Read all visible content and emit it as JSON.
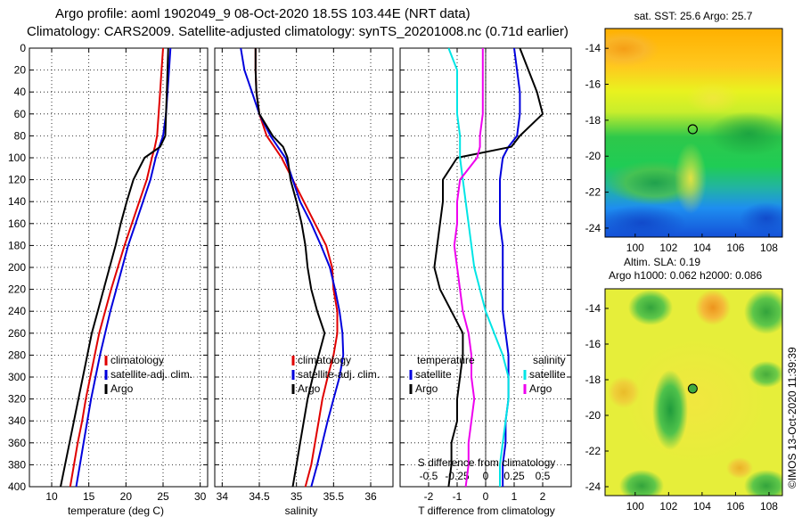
{
  "header": {
    "title_line1": "Argo profile: aoml 1902049_9 08-Oct-2020 18.5S 103.44E (NRT data)",
    "title_line2": "Climatology: CARS2009. Satellite-adjusted climatology: synTS_20201008.nc (0.71d earlier)"
  },
  "colors": {
    "climatology": "#e00000",
    "satellite": "#0000dd",
    "argo": "#000000",
    "salinity_diff": "#ee00ee",
    "salinity_satellite_diff": "#00e5e5",
    "grid": "#000000"
  },
  "chart_data": [
    {
      "id": "temperature",
      "type": "line",
      "xlabel": "temperature (deg C)",
      "ylabel": "",
      "xlim": [
        7,
        31
      ],
      "ylim": [
        400,
        0
      ],
      "xticks": [
        "10",
        "15",
        "20",
        "25",
        "30"
      ],
      "xtick_values": [
        10,
        15,
        20,
        25,
        30
      ],
      "yticks": [
        "0",
        "20",
        "40",
        "60",
        "80",
        "100",
        "120",
        "140",
        "160",
        "180",
        "200",
        "220",
        "240",
        "260",
        "280",
        "300",
        "320",
        "340",
        "360",
        "380",
        "400"
      ],
      "ytick_values": [
        0,
        20,
        40,
        60,
        80,
        100,
        120,
        140,
        160,
        180,
        200,
        220,
        240,
        260,
        280,
        300,
        320,
        340,
        360,
        380,
        400
      ],
      "legend": [
        "climatology",
        "satellite-adj. clim.",
        "Argo"
      ],
      "series": [
        {
          "name": "climatology",
          "color": "#e00000",
          "x": [
            25.0,
            24.8,
            24.6,
            24.4,
            24.2,
            23.9,
            23.5,
            22.8,
            21.8,
            20.8,
            19.8,
            18.9,
            18.0,
            17.2,
            16.4,
            15.8,
            15.2,
            14.6,
            14.1,
            13.5,
            13.0,
            12.5
          ],
          "y": [
            0,
            20,
            40,
            60,
            80,
            90,
            100,
            120,
            140,
            160,
            180,
            200,
            220,
            240,
            260,
            280,
            300,
            320,
            340,
            360,
            380,
            400
          ]
        },
        {
          "name": "satellite-adj. clim.",
          "color": "#0000dd",
          "x": [
            26.0,
            25.8,
            25.6,
            25.4,
            25.0,
            24.5,
            24.0,
            23.3,
            22.3,
            21.3,
            20.3,
            19.5,
            18.7,
            17.9,
            17.2,
            16.5,
            15.9,
            15.3,
            14.8,
            14.3,
            13.8,
            13.3
          ],
          "y": [
            0,
            20,
            40,
            60,
            80,
            90,
            100,
            120,
            140,
            160,
            180,
            200,
            220,
            240,
            260,
            280,
            300,
            320,
            340,
            360,
            380,
            400
          ]
        },
        {
          "name": "Argo",
          "color": "#000000",
          "x": [
            25.7,
            25.6,
            25.5,
            25.4,
            25.3,
            24.6,
            22.5,
            21.0,
            20.1,
            19.3,
            18.6,
            17.8,
            17.0,
            16.2,
            15.4,
            14.8,
            14.2,
            13.6,
            13.0,
            12.4,
            11.8,
            11.2
          ],
          "y": [
            0,
            20,
            40,
            60,
            80,
            90,
            100,
            120,
            140,
            160,
            180,
            200,
            220,
            240,
            260,
            280,
            300,
            320,
            340,
            360,
            380,
            400
          ]
        }
      ]
    },
    {
      "id": "salinity",
      "type": "line",
      "xlabel": "salinity",
      "ylabel": "",
      "xlim": [
        33.9,
        36.3
      ],
      "ylim": [
        400,
        0
      ],
      "xticks": [
        "34",
        "34.5",
        "35",
        "35.5",
        "36"
      ],
      "xtick_values": [
        34,
        34.5,
        35,
        35.5,
        36
      ],
      "legend": [
        "climatology",
        "satellite-adj. clim.",
        "Argo"
      ],
      "series": [
        {
          "name": "climatology",
          "color": "#e00000",
          "x": [
            34.45,
            34.45,
            34.46,
            34.5,
            34.6,
            34.7,
            34.8,
            34.95,
            35.1,
            35.25,
            35.4,
            35.48,
            35.5,
            35.55,
            35.55,
            35.5,
            35.42,
            35.35,
            35.3,
            35.25,
            35.2,
            35.12
          ],
          "y": [
            0,
            20,
            40,
            60,
            80,
            90,
            100,
            120,
            140,
            160,
            180,
            200,
            220,
            240,
            260,
            280,
            300,
            320,
            340,
            360,
            380,
            400
          ]
        },
        {
          "name": "satellite-adj. clim.",
          "color": "#0000dd",
          "x": [
            34.25,
            34.3,
            34.4,
            34.5,
            34.65,
            34.75,
            34.85,
            34.95,
            35.05,
            35.2,
            35.33,
            35.45,
            35.52,
            35.58,
            35.62,
            35.63,
            35.58,
            35.5,
            35.42,
            35.35,
            35.28,
            35.2
          ],
          "y": [
            0,
            20,
            40,
            60,
            80,
            90,
            100,
            120,
            140,
            160,
            180,
            200,
            220,
            240,
            260,
            280,
            300,
            320,
            340,
            360,
            380,
            400
          ]
        },
        {
          "name": "Argo",
          "color": "#000000",
          "x": [
            34.45,
            34.45,
            34.46,
            34.5,
            34.68,
            34.82,
            34.88,
            34.92,
            35.0,
            35.07,
            35.12,
            35.15,
            35.2,
            35.28,
            35.38,
            35.3,
            35.22,
            35.15,
            35.1,
            35.05,
            35.0,
            34.95
          ],
          "y": [
            0,
            20,
            40,
            60,
            80,
            90,
            100,
            120,
            140,
            160,
            180,
            200,
            220,
            240,
            260,
            280,
            300,
            320,
            340,
            360,
            380,
            400
          ]
        }
      ]
    },
    {
      "id": "difference",
      "type": "line",
      "xlabel": "T difference from climatology",
      "top_label": "S difference from climatology",
      "xlim": [
        -3,
        3
      ],
      "ylim": [
        400,
        0
      ],
      "xticks": [
        "-2",
        "-1",
        "0",
        "1",
        "2"
      ],
      "xtick_values": [
        -2,
        -1,
        0,
        1,
        2
      ],
      "s_xticks": [
        "-0.5",
        "-0.25",
        "0",
        "0.25",
        "0.5"
      ],
      "s_xtick_values": [
        -2,
        -1,
        0,
        1,
        2
      ],
      "legend_left_title": "temperature",
      "legend_right_title": "salinity",
      "legend_left": [
        "satellite",
        "Argo"
      ],
      "legend_right": [
        "satellite",
        "Argo"
      ],
      "series": [
        {
          "name": "temperature satellite",
          "color": "#0000dd",
          "x": [
            1.0,
            1.1,
            1.2,
            1.2,
            1.1,
            0.8,
            0.6,
            0.5,
            0.5,
            0.5,
            0.6,
            0.6,
            0.6,
            0.6,
            0.7,
            0.8,
            0.8,
            0.8,
            0.7,
            0.7,
            0.6,
            0.6
          ],
          "y": [
            0,
            20,
            40,
            60,
            80,
            90,
            100,
            120,
            140,
            160,
            180,
            200,
            220,
            240,
            260,
            280,
            300,
            320,
            340,
            360,
            380,
            400
          ]
        },
        {
          "name": "temperature Argo",
          "color": "#000000",
          "x": [
            1.2,
            1.5,
            1.8,
            2.0,
            1.2,
            0.9,
            -1.0,
            -1.5,
            -1.5,
            -1.6,
            -1.7,
            -1.8,
            -1.6,
            -1.2,
            -0.8,
            -0.8,
            -0.9,
            -1.0,
            -1.0,
            -1.2,
            -1.2,
            -1.3
          ],
          "y": [
            0,
            20,
            40,
            60,
            80,
            90,
            100,
            120,
            140,
            160,
            180,
            200,
            220,
            240,
            260,
            280,
            300,
            320,
            340,
            360,
            380,
            400
          ]
        },
        {
          "name": "salinity satellite",
          "color": "#00e5e5",
          "x": [
            -1.3,
            -1.0,
            -1.0,
            -1.0,
            -0.9,
            -0.9,
            -0.9,
            -0.8,
            -0.7,
            -0.6,
            -0.5,
            -0.4,
            -0.2,
            0.0,
            0.3,
            0.6,
            0.8,
            0.8,
            0.7,
            0.6,
            0.5,
            0.5
          ],
          "y": [
            0,
            20,
            40,
            60,
            80,
            90,
            100,
            120,
            140,
            160,
            180,
            200,
            220,
            240,
            260,
            280,
            300,
            320,
            340,
            360,
            380,
            400
          ]
        },
        {
          "name": "salinity Argo",
          "color": "#ee00ee",
          "x": [
            -0.1,
            -0.1,
            -0.1,
            -0.1,
            -0.2,
            -0.2,
            -0.3,
            -0.9,
            -1.0,
            -1.0,
            -1.1,
            -1.0,
            -0.9,
            -0.8,
            -0.6,
            -0.5,
            -0.5,
            -0.4,
            -0.5,
            -0.6,
            -0.6,
            -0.7
          ],
          "y": [
            0,
            20,
            40,
            60,
            80,
            90,
            100,
            120,
            140,
            160,
            180,
            200,
            220,
            240,
            260,
            280,
            300,
            320,
            340,
            360,
            380,
            400
          ]
        }
      ]
    }
  ],
  "maps": [
    {
      "id": "sst-map",
      "title": "sat. SST: 25.6 Argo: 25.7",
      "yticks": [
        "-14",
        "-16",
        "-18",
        "-20",
        "-22",
        "-24"
      ],
      "ytick_values": [
        -14,
        -16,
        -18,
        -20,
        -22,
        -24
      ],
      "xticks": [
        "100",
        "102",
        "104",
        "106",
        "108"
      ],
      "xtick_values": [
        100,
        102,
        104,
        106,
        108
      ],
      "lon_range": [
        98.2,
        108.8
      ],
      "lat_range": [
        -24.5,
        -12.9
      ],
      "argo_position": {
        "lon": 103.44,
        "lat": -18.5
      }
    },
    {
      "id": "sla-map",
      "title_line1": "Altim. SLA: 0.19",
      "title_line2": "Argo h1000: 0.062 h2000: 0.086",
      "yticks": [
        "-14",
        "-16",
        "-18",
        "-20",
        "-22",
        "-24"
      ],
      "ytick_values": [
        -14,
        -16,
        -18,
        -20,
        -22,
        -24
      ],
      "xticks": [
        "100",
        "102",
        "104",
        "106",
        "108"
      ],
      "xtick_values": [
        100,
        102,
        104,
        106,
        108
      ],
      "lon_range": [
        98.2,
        108.8
      ],
      "lat_range": [
        -24.5,
        -12.9
      ],
      "argo_position": {
        "lon": 103.44,
        "lat": -18.5
      }
    }
  ],
  "credit": "©IMOS 13-Oct-2020 11:39:39"
}
